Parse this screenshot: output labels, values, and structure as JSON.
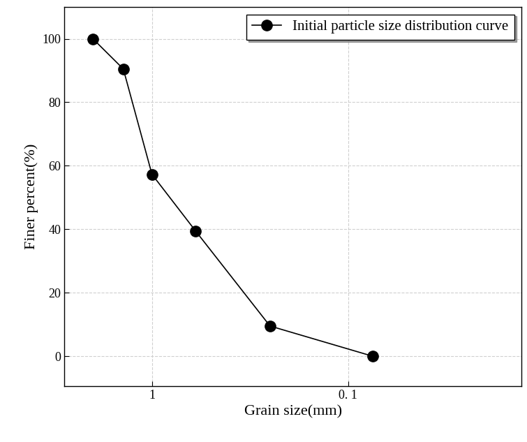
{
  "chart_data": {
    "type": "line",
    "x_label": "Grain size(mm)",
    "y_label": "Finer percent(%)",
    "log": "x",
    "x": [
      2,
      1.4,
      1,
      0.6,
      0.25,
      0.075
    ],
    "series": [
      {
        "name": "Initial particle size distribution curve",
        "color": "#000000",
        "marker": "circle",
        "line_style": "solid",
        "values": [
          100,
          90.5,
          57.3,
          39.5,
          9.5,
          0
        ]
      }
    ],
    "xlim": [
      2.8,
      0.013
    ],
    "xticks": [
      1,
      {
        "value": 0.1,
        "label": "0. 1"
      }
    ],
    "ylim": [
      -9.5,
      110
    ],
    "yticks": [
      0,
      20,
      40,
      60,
      80,
      100
    ],
    "grid": true,
    "legend": "upper right"
  }
}
